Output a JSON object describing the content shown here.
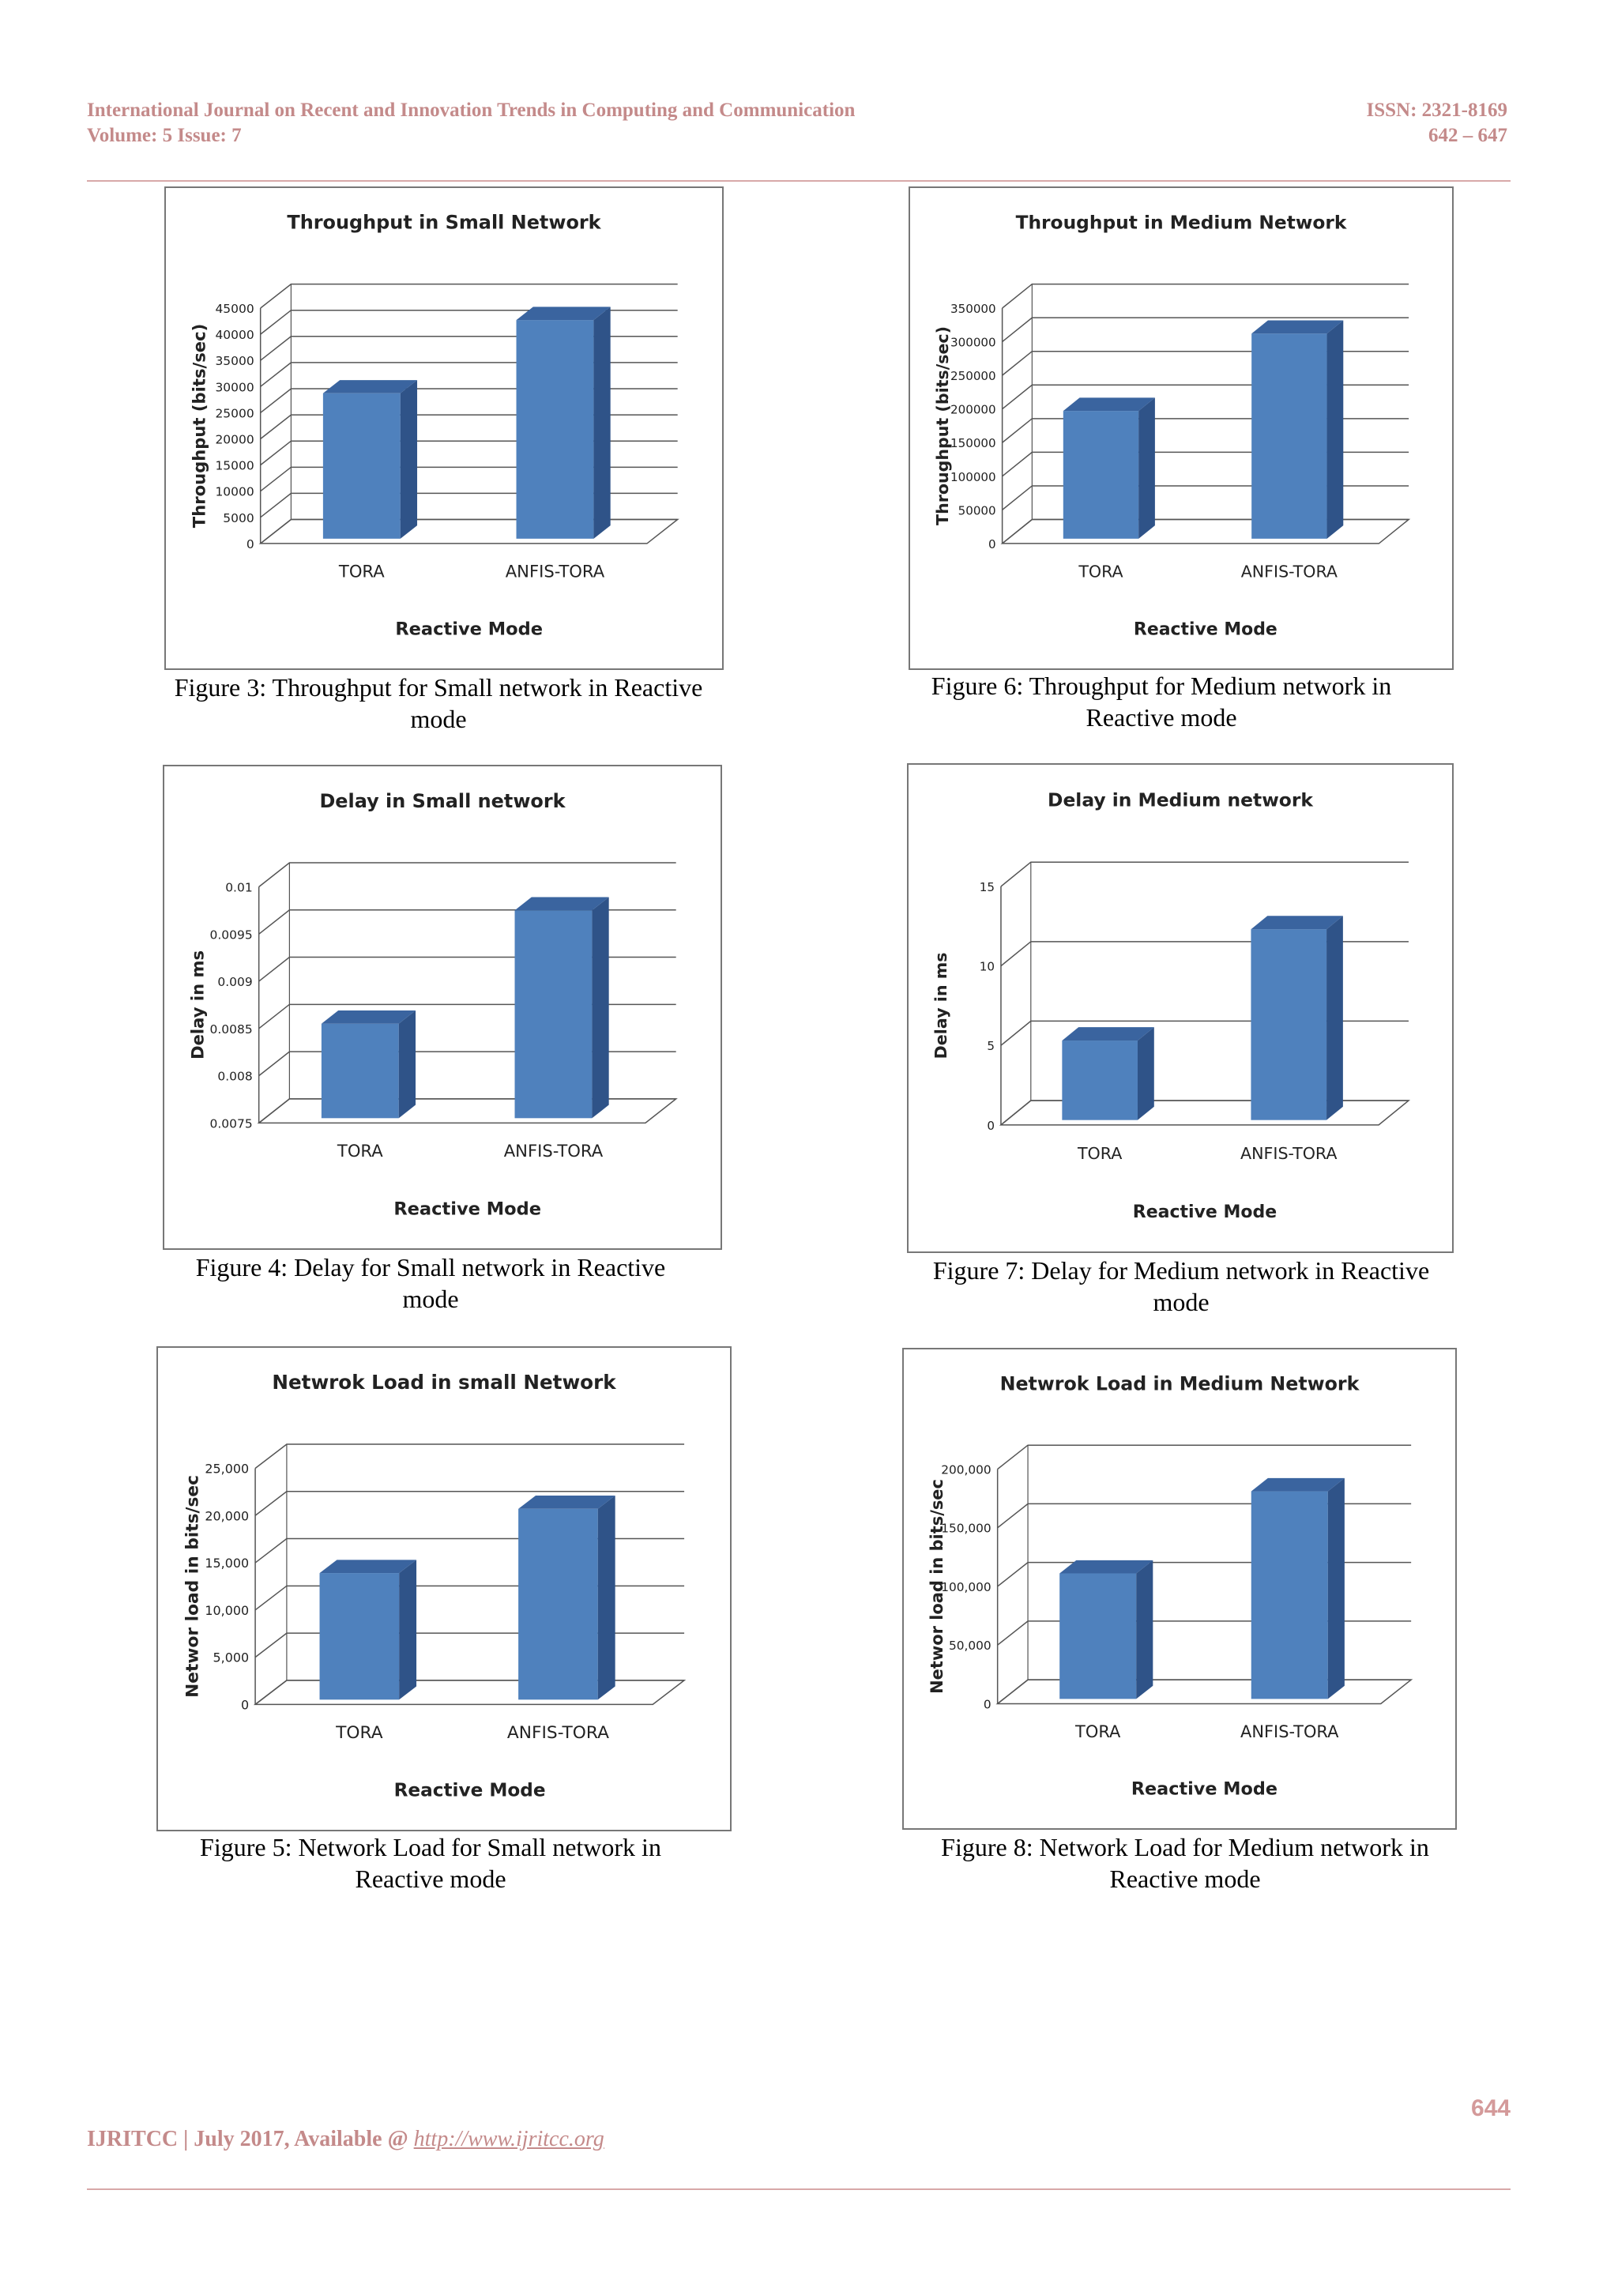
{
  "header": {
    "journal": "International Journal on Recent and Innovation Trends in Computing and Communication",
    "volume": "Volume: 5 Issue: 7",
    "issn": "ISSN: 2321-8169",
    "pages": "642 – 647"
  },
  "footer": {
    "text": "IJRITCC | July 2017, Available @ ",
    "link": "http://www.ijritcc.org",
    "page_number": "644"
  },
  "captions": {
    "fig3": [
      "Figure 3:  Throughput for Small network in Reactive",
      "mode"
    ],
    "fig6": [
      "Figure 6:  Throughput for Medium network in",
      "Reactive mode"
    ],
    "fig4": [
      "Figure 4:  Delay for Small network in Reactive",
      "mode"
    ],
    "fig7": [
      "Figure 7:  Delay for Medium network in Reactive",
      "mode"
    ],
    "fig5": [
      "Figure 5:  Network Load for Small network in",
      "Reactive mode"
    ],
    "fig8": [
      "Figure 8:  Network Load for Medium network in",
      "Reactive mode"
    ]
  },
  "colors": {
    "bar_front": "#4f81bd",
    "bar_side": "#2f5388",
    "bar_top": "#3a649f",
    "grid": "#555555"
  },
  "chart_data": [
    {
      "id": "fig3",
      "type": "bar",
      "title": "Throughput in Small Network",
      "xlabel": "Reactive Mode",
      "ylabel": "Throughput (bits/sec)",
      "categories": [
        "TORA",
        "ANFIS-TORA"
      ],
      "values": [
        27800,
        41800
      ],
      "yticks": [
        "0",
        "5000",
        "10000",
        "15000",
        "20000",
        "25000",
        "30000",
        "35000",
        "40000",
        "45000"
      ],
      "ylim": [
        0,
        45000
      ]
    },
    {
      "id": "fig6",
      "type": "bar",
      "title": "Throughput in Medium Network",
      "xlabel": "Reactive Mode",
      "ylabel": "Throughput (bits/sec)",
      "categories": [
        "TORA",
        "ANFIS-TORA"
      ],
      "values": [
        190000,
        305000
      ],
      "yticks": [
        "0",
        "50000",
        "100000",
        "150000",
        "200000",
        "250000",
        "300000",
        "350000"
      ],
      "ylim": [
        0,
        350000
      ]
    },
    {
      "id": "fig4",
      "type": "bar",
      "title": "Delay in Small network",
      "xlabel": "Reactive Mode",
      "ylabel": "Delay in ms",
      "categories": [
        "TORA",
        "ANFIS-TORA"
      ],
      "values": [
        0.0085,
        0.0097
      ],
      "yticks": [
        "0.0075",
        "0.008",
        "0.0085",
        "0.009",
        "0.0095",
        "0.01"
      ],
      "ylim": [
        0.0075,
        0.01
      ]
    },
    {
      "id": "fig7",
      "type": "bar",
      "title": "Delay in Medium network",
      "xlabel": "Reactive Mode",
      "ylabel": "Delay in ms",
      "categories": [
        "TORA",
        "ANFIS-TORA"
      ],
      "values": [
        5,
        12
      ],
      "yticks": [
        "0",
        "5",
        "10",
        "15"
      ],
      "ylim": [
        0,
        15
      ]
    },
    {
      "id": "fig5",
      "type": "bar",
      "title": "Netwrok Load in small Network",
      "xlabel": "Reactive Mode",
      "ylabel": "Networ load in bits/sec",
      "categories": [
        "TORA",
        "ANFIS-TORA"
      ],
      "values": [
        13400,
        20200
      ],
      "yticks": [
        "0",
        "5,000",
        "10,000",
        "15,000",
        "20,000",
        "25,000"
      ],
      "ylim": [
        0,
        25000
      ]
    },
    {
      "id": "fig8",
      "type": "bar",
      "title": "Netwrok Load in Medium Network",
      "xlabel": "Reactive Mode",
      "ylabel": "Networ load in bits/sec",
      "categories": [
        "TORA",
        "ANFIS-TORA"
      ],
      "values": [
        107000,
        177000
      ],
      "yticks": [
        "0",
        "50,000",
        "100,000",
        "150,000",
        "200,000"
      ],
      "ylim": [
        0,
        200000
      ]
    }
  ]
}
